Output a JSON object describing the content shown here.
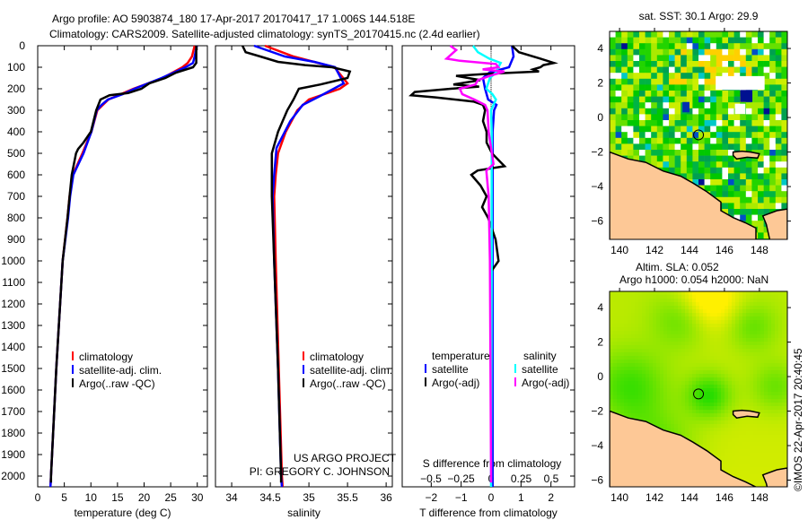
{
  "header": {
    "title_line1": "Argo profile: AO 5903874_180 17-Apr-2017 20170417_17 1.006S 144.518E",
    "title_line2": "Climatology: CARS2009. Satellite-adjusted climatology: synTS_20170415.nc (2.4d earlier)"
  },
  "credits": {
    "project": "US ARGO PROJECT",
    "pi": "PI: GREGORY C. JOHNSON",
    "imos_stamp": "©IMOS 22-Apr-2017 20:40:45"
  },
  "colors": {
    "climatology": "#ff0000",
    "satellite": "#0000ff",
    "argo": "#000000",
    "sal_satellite": "#00ffff",
    "sal_argo": "#ff00ff",
    "land": "#fdc896"
  },
  "chart_data": [
    {
      "type": "line",
      "id": "temperature",
      "xlabel": "temperature (deg C)",
      "ylabel": "",
      "xlim": [
        0,
        31.9
      ],
      "ylim": [
        2050,
        0
      ],
      "xticks": [
        0,
        5,
        10,
        15,
        20,
        25,
        30
      ],
      "yticks": [
        0,
        100,
        200,
        300,
        400,
        500,
        600,
        700,
        800,
        900,
        1000,
        1100,
        1200,
        1300,
        1400,
        1500,
        1600,
        1700,
        1800,
        1900,
        2000
      ],
      "legend": [
        "climatology",
        "satellite-adj. clim.",
        "Argo(..raw -QC)"
      ],
      "series": [
        {
          "name": "climatology",
          "color": "#ff0000",
          "depth": [
            0,
            50,
            80,
            100,
            150,
            200,
            250,
            300,
            400,
            500,
            600,
            700,
            800,
            1000,
            1500,
            2000,
            2050
          ],
          "values": [
            29.5,
            29.0,
            28.2,
            27.2,
            23.5,
            18.0,
            13.3,
            11.2,
            10.1,
            8.4,
            6.6,
            6.0,
            5.6,
            4.7,
            3.5,
            2.5,
            2.4
          ]
        },
        {
          "name": "satellite-adj. clim.",
          "color": "#0000ff",
          "depth": [
            0,
            50,
            80,
            100,
            150,
            200,
            225,
            250,
            275,
            300,
            400,
            500,
            600,
            700,
            800,
            1000,
            1500,
            2000,
            2050
          ],
          "values": [
            29.9,
            29.5,
            29.2,
            27.8,
            23.3,
            18.2,
            16.0,
            13.2,
            12.0,
            11.1,
            10.1,
            8.6,
            6.7,
            6.1,
            5.7,
            4.7,
            3.5,
            2.5,
            2.4
          ]
        },
        {
          "name": "Argo(..raw -QC)",
          "color": "#000000",
          "depth": [
            0,
            80,
            100,
            125,
            150,
            175,
            200,
            220,
            230,
            250,
            300,
            400,
            450,
            480,
            500,
            600,
            700,
            800,
            1000,
            1500,
            2000,
            2030
          ],
          "values": [
            29.8,
            29.8,
            29.2,
            26.0,
            24.0,
            21.0,
            19.5,
            17.0,
            13.5,
            11.8,
            11.0,
            10.0,
            8.6,
            7.6,
            7.2,
            6.4,
            6.0,
            5.6,
            4.7,
            3.5,
            2.5,
            2.5
          ]
        }
      ]
    },
    {
      "type": "line",
      "id": "salinity",
      "xlabel": "salinity",
      "xlim": [
        33.79,
        36.08
      ],
      "ylim": [
        2050,
        0
      ],
      "xticks": [
        34,
        34.5,
        35,
        35.5,
        36
      ],
      "legend": [
        "climatology",
        "satellite-adj. clim.",
        "Argo(..raw -QC)"
      ],
      "series": [
        {
          "name": "climatology",
          "color": "#ff0000",
          "depth": [
            0,
            50,
            100,
            175,
            200,
            250,
            300,
            400,
            500,
            600,
            700,
            1000,
            1500,
            2000,
            2050
          ],
          "values": [
            34.43,
            34.8,
            35.33,
            35.5,
            35.4,
            35.0,
            34.85,
            34.7,
            34.6,
            34.57,
            34.55,
            34.57,
            34.61,
            34.65,
            34.66
          ]
        },
        {
          "name": "satellite-adj. clim.",
          "color": "#0000ff",
          "depth": [
            0,
            50,
            75,
            100,
            175,
            233,
            275,
            350,
            475,
            600,
            700,
            1000,
            1500,
            2000,
            2050
          ],
          "values": [
            34.29,
            34.69,
            35.07,
            35.34,
            35.45,
            35.15,
            34.92,
            34.76,
            34.58,
            34.55,
            34.53,
            34.55,
            34.6,
            34.64,
            34.65
          ]
        },
        {
          "name": "Argo(..raw -QC)",
          "color": "#000000",
          "depth": [
            0,
            30,
            50,
            75,
            90,
            100,
            120,
            150,
            180,
            200,
            250,
            300,
            400,
            500,
            600,
            700,
            1000,
            1500,
            2000,
            2030
          ],
          "values": [
            34.14,
            34.18,
            34.37,
            34.6,
            34.95,
            35.3,
            35.53,
            35.5,
            35.15,
            34.87,
            34.8,
            34.72,
            34.6,
            34.52,
            34.52,
            34.52,
            34.55,
            34.6,
            34.64,
            34.64
          ]
        }
      ]
    },
    {
      "type": "line",
      "id": "difference",
      "xlabel": "T difference from climatology",
      "xlabel2": "S difference from climatology",
      "xlim": [
        -2.97,
        2.79
      ],
      "xlim2": [
        -0.739,
        0.694
      ],
      "ylim": [
        2050,
        0
      ],
      "xticks": [
        -2,
        -1,
        0,
        1,
        2
      ],
      "xticks2": [
        -0.5,
        -0.25,
        0,
        0.25,
        0.5
      ],
      "legend_headers": [
        "temperature",
        "salinity"
      ],
      "legend": [
        "satellite",
        "Argo(-adj)",
        "satellite",
        "Argo(-adj)"
      ],
      "series": [
        {
          "name": "T satellite",
          "axis": "T",
          "color": "#0000ff",
          "depth": [
            0,
            50,
            100,
            125,
            150,
            200,
            250,
            275,
            300,
            400,
            1000,
            2000,
            2050
          ],
          "values": [
            0.7,
            0.75,
            0.6,
            -0.06,
            -0.27,
            -0.2,
            -0.1,
            0.18,
            0.1,
            0.05,
            0.05,
            0.05,
            0.05
          ]
        },
        {
          "name": "T Argo(-adj)",
          "axis": "T",
          "color": "#000000",
          "depth": [
            0,
            30,
            60,
            80,
            90,
            100,
            110,
            120,
            130,
            140,
            160,
            180,
            190,
            200,
            215,
            230,
            240,
            260,
            275,
            300,
            350,
            400,
            450,
            500,
            530,
            560,
            580,
            600,
            650,
            700,
            750,
            800,
            900,
            1000,
            1030,
            1050
          ],
          "values": [
            0.7,
            0.93,
            1.65,
            2.1,
            1.75,
            1.65,
            1.4,
            1.6,
            -0.06,
            -1.17,
            -0.36,
            -1.26,
            -0.4,
            -1.35,
            -2.55,
            -2.67,
            -1.86,
            -0.57,
            -0.27,
            -0.2,
            -0.27,
            -0.15,
            -0.15,
            0.03,
            0.24,
            0.45,
            -0.45,
            -0.66,
            -0.35,
            -0.15,
            -0.3,
            -0.1,
            0.15,
            0.25,
            0.1,
            0.0
          ]
        },
        {
          "name": "S satellite",
          "axis": "S",
          "color": "#00ffff",
          "depth": [
            0,
            30,
            60,
            80,
            100,
            125,
            150,
            200,
            225,
            250,
            300,
            400,
            1000,
            2000,
            2050
          ],
          "values": [
            -0.15,
            -0.11,
            -0.015,
            0.08,
            0.06,
            0.04,
            -0.01,
            -0.04,
            0.01,
            0.04,
            0.0,
            0.005,
            0.005,
            0.0,
            0.0
          ]
        },
        {
          "name": "S Argo(-adj)",
          "axis": "S",
          "color": "#ff00ff",
          "depth": [
            0,
            20,
            40,
            60,
            70,
            85,
            100,
            110,
            120,
            140,
            160,
            180,
            200,
            225,
            250,
            275,
            300,
            400,
            550,
            580,
            700,
            1000,
            2000,
            2030
          ],
          "values": [
            -0.34,
            -0.29,
            -0.33,
            -0.37,
            -0.26,
            0.04,
            0.06,
            -0.07,
            0.11,
            -0.01,
            -0.11,
            -0.13,
            -0.26,
            -0.24,
            -0.14,
            -0.05,
            -0.03,
            -0.02,
            0.02,
            -0.04,
            -0.02,
            -0.01,
            0.0,
            0.0
          ]
        }
      ]
    },
    {
      "type": "heatmap",
      "id": "sst-map",
      "title": "sat. SST: 30.1 Argo: 29.9",
      "xlim": [
        139.43,
        149.6
      ],
      "ylim": [
        -7.06,
        4.99
      ],
      "xticks": [
        140,
        142,
        144,
        146,
        148
      ],
      "yticks": [
        4,
        2,
        0,
        -2,
        -4,
        -6
      ],
      "argo_position": [
        144.518,
        -1.006
      ]
    },
    {
      "type": "heatmap",
      "id": "sla-map",
      "title": "Altim. SLA: 0.052",
      "subtitle": "Argo h1000: 0.054 h2000: NaN",
      "xlim": [
        139.43,
        149.6
      ],
      "ylim": [
        -6.39,
        4.94
      ],
      "xticks": [
        140,
        142,
        144,
        146,
        148
      ],
      "yticks": [
        4,
        2,
        0,
        -2,
        -4,
        -6
      ],
      "argo_position": [
        144.518,
        -1.006
      ]
    }
  ]
}
